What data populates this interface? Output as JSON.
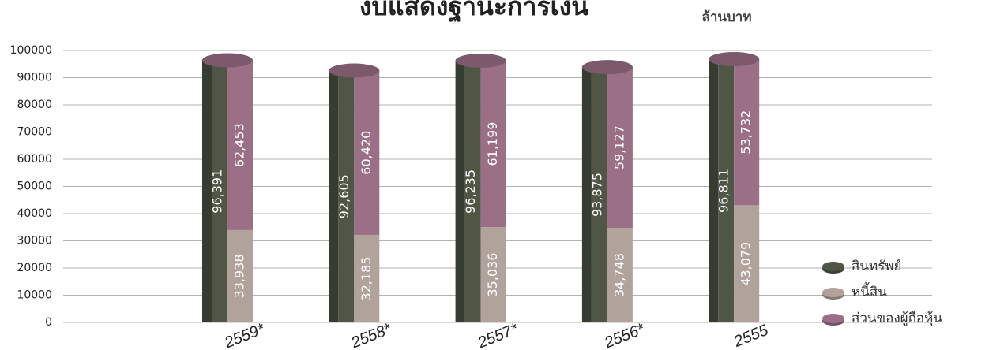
{
  "chart_data": {
    "type": "bar3d",
    "title": "งบแสดงฐานะการเงิน",
    "unit_label": "ล้านบาท",
    "categories": [
      "2559*",
      "2558*",
      "2557*",
      "2556*",
      "2555"
    ],
    "series": [
      {
        "name": "สินทรัพย์",
        "color": "#4f5646",
        "values": [
          96391,
          92605,
          96235,
          93875,
          96811
        ],
        "value_labels": [
          "96,391",
          "92,605",
          "96,235",
          "93,875",
          "96,811"
        ]
      },
      {
        "name": "หนี้สิน",
        "color": "#b1a39b",
        "values": [
          33938,
          32185,
          35036,
          34748,
          43079
        ],
        "value_labels": [
          "33,938",
          "32,185",
          "35,036",
          "34,748",
          "43,079"
        ]
      },
      {
        "name": "ส่วนของผู้ถือหุ้น",
        "color": "#9b6f86",
        "values": [
          62453,
          60420,
          61199,
          59127,
          53732
        ],
        "value_labels": [
          "62,453",
          "60,420",
          "61,199",
          "59,127",
          "53,732"
        ]
      }
    ],
    "ylim": [
      0,
      100000
    ],
    "yticks": [
      0,
      10000,
      20000,
      30000,
      40000,
      50000,
      60000,
      70000,
      80000,
      90000,
      100000
    ],
    "grid": true,
    "legend": "bottom-right"
  }
}
